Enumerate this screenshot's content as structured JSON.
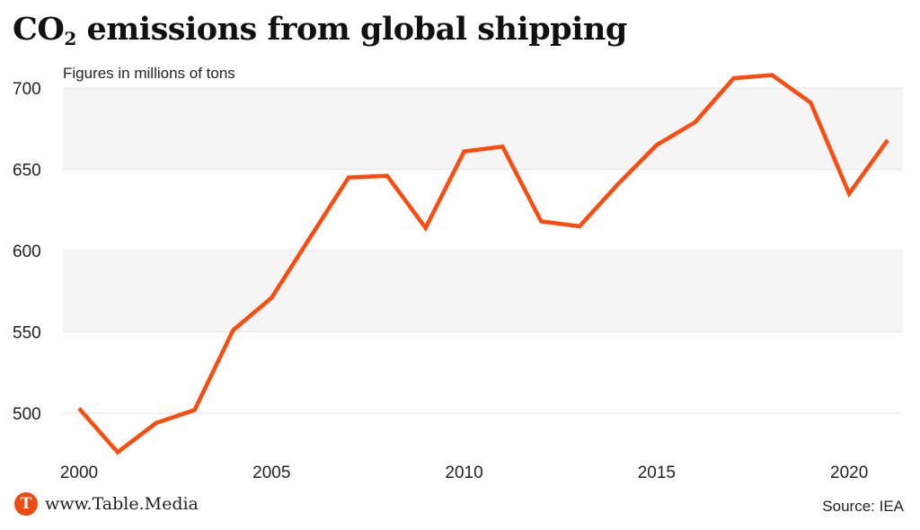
{
  "header": {
    "title_prefix": "CO",
    "title_sub": "2",
    "title_suffix": " emissions from global shipping",
    "subtitle": "Figures in millions of tons"
  },
  "footer": {
    "logo_letter": "T",
    "site": "www.Table.Media",
    "source": "Source: IEA"
  },
  "colors": {
    "line": "#ff4a0d",
    "band": "#f5f5f5",
    "grid": "#e6e6e6"
  },
  "chart_data": {
    "type": "line",
    "title": "CO2 emissions from global shipping",
    "subtitle": "Figures in millions of tons",
    "xlabel": "",
    "ylabel": "",
    "xlim": [
      2000,
      2021
    ],
    "ylim": [
      475,
      710
    ],
    "x_ticks": [
      2000,
      2005,
      2010,
      2015,
      2020
    ],
    "y_ticks": [
      500,
      550,
      600,
      650,
      700
    ],
    "shaded_bands": [
      [
        550,
        600
      ],
      [
        650,
        700
      ]
    ],
    "grid": true,
    "series": [
      {
        "x": [
          2000,
          2001,
          2002,
          2003,
          2004,
          2005,
          2006,
          2007,
          2008,
          2009,
          2010,
          2011,
          2012,
          2013,
          2014,
          2015,
          2016,
          2017,
          2018,
          2019,
          2020,
          2021
        ],
        "values": [
          503,
          476,
          494,
          502,
          551,
          571,
          608,
          645,
          646,
          614,
          661,
          664,
          618,
          615,
          641,
          665,
          679,
          706,
          708,
          691,
          635,
          668
        ]
      }
    ]
  }
}
